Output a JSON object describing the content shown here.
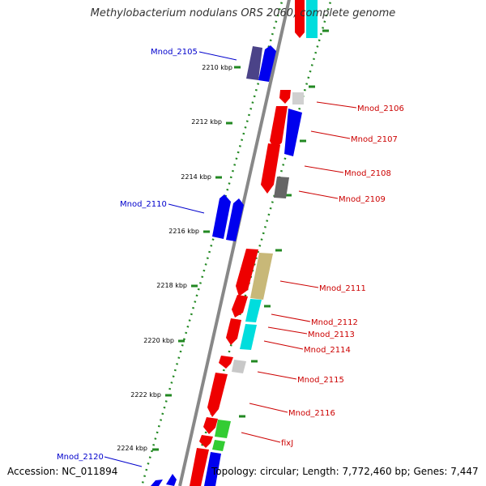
{
  "title": "Methylobacterium nodulans ORS 2060, complete genome",
  "footer": {
    "accession": "Accession: NC_011894",
    "topology": "Topology: circular; Length: 7,772,460 bp; Genes: 7,447"
  },
  "colors": {
    "reverse_strand_label": "#0000cc",
    "forward_strand_label": "#cc0000",
    "backbone": "#888888",
    "tick": "#228822"
  },
  "ruler": [
    {
      "label": "2210 kbp"
    },
    {
      "label": "2212 kbp"
    },
    {
      "label": "2214 kbp"
    },
    {
      "label": "2216 kbp"
    },
    {
      "label": "2218 kbp"
    },
    {
      "label": "2220 kbp"
    },
    {
      "label": "2222 kbp"
    },
    {
      "label": "2224 kbp"
    }
  ],
  "gene_labels": [
    {
      "name": "Mnod_2105",
      "strand": "reverse"
    },
    {
      "name": "Mnod_2106",
      "strand": "forward"
    },
    {
      "name": "Mnod_2107",
      "strand": "forward"
    },
    {
      "name": "Mnod_2108",
      "strand": "forward"
    },
    {
      "name": "Mnod_2109",
      "strand": "forward"
    },
    {
      "name": "Mnod_2110",
      "strand": "reverse"
    },
    {
      "name": "Mnod_2111",
      "strand": "forward"
    },
    {
      "name": "Mnod_2112",
      "strand": "forward"
    },
    {
      "name": "Mnod_2113",
      "strand": "forward"
    },
    {
      "name": "Mnod_2114",
      "strand": "forward"
    },
    {
      "name": "Mnod_2115",
      "strand": "forward"
    },
    {
      "name": "Mnod_2116",
      "strand": "forward"
    },
    {
      "name": "fixJ",
      "strand": "forward"
    },
    {
      "name": "Mnod_2120",
      "strand": "reverse"
    }
  ]
}
